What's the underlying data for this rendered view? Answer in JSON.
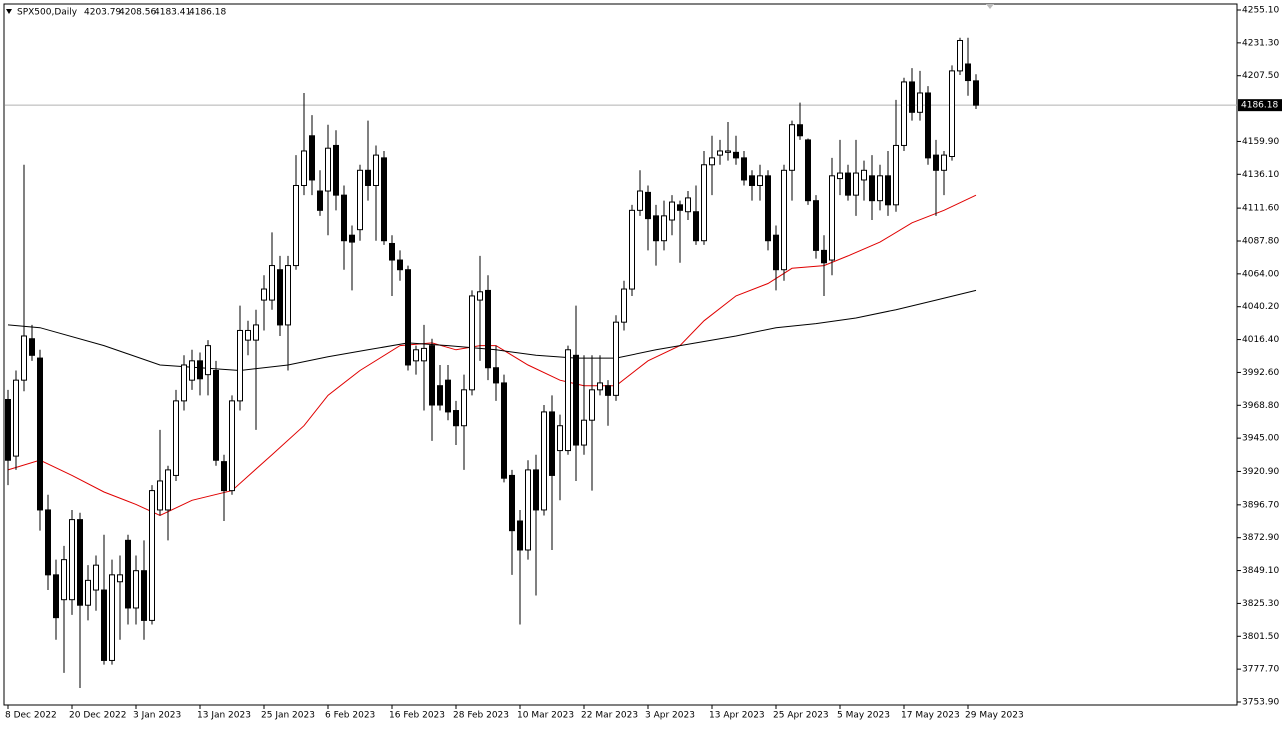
{
  "chart_data": {
    "type": "candlestick",
    "symbol": "SPX500,Daily",
    "categories": [
      "8 Dec 2022",
      null,
      null,
      null,
      null,
      null,
      null,
      null,
      "20 Dec 2022",
      null,
      null,
      null,
      null,
      null,
      null,
      null,
      "3 Jan 2023",
      null,
      null,
      null,
      null,
      null,
      null,
      null,
      "13 Jan 2023",
      null,
      null,
      null,
      null,
      null,
      null,
      null,
      "25 Jan 2023",
      null,
      null,
      null,
      null,
      null,
      null,
      null,
      "6 Feb 2023",
      null,
      null,
      null,
      null,
      null,
      null,
      null,
      "16 Feb 2023",
      null,
      null,
      null,
      null,
      null,
      null,
      null,
      "28 Feb 2023",
      null,
      null,
      null,
      null,
      null,
      null,
      null,
      "10 Mar 2023",
      null,
      null,
      null,
      null,
      null,
      null,
      null,
      "22 Mar 2023",
      null,
      null,
      null,
      null,
      null,
      null,
      null,
      "3 Apr 2023",
      null,
      null,
      null,
      null,
      null,
      null,
      null,
      "13 Apr 2023",
      null,
      null,
      null,
      null,
      null,
      null,
      null,
      "25 Apr 2023",
      null,
      null,
      null,
      null,
      null,
      null,
      null,
      "5 May 2023",
      null,
      null,
      null,
      null,
      null,
      null,
      null,
      "17 May 2023",
      null,
      null,
      null,
      null,
      null,
      null,
      null,
      "29 May 2023",
      null
    ],
    "open": [
      3973,
      3932,
      3987,
      4017,
      4003,
      3893,
      3846,
      3828,
      3828,
      3886,
      3824,
      3835,
      3835,
      3784,
      3841,
      3871,
      3822,
      3849,
      3813,
      3893,
      3893,
      3918,
      3972,
      3987,
      4001,
      3991,
      3994,
      3928,
      3907,
      3972,
      4016,
      4016,
      4045,
      4045,
      4067,
      4027,
      4070,
      4128,
      4164,
      4124,
      4124,
      4157,
      4121,
      4092,
      4096,
      4139,
      4128,
      4148,
      4086,
      4074,
      4067,
      4001,
      4001,
      4012,
      3983,
      3987,
      3965,
      3954,
      3980,
      4045,
      4052,
      3996,
      3985,
      3918,
      3885,
      3864,
      3922,
      3893,
      3964,
      3936,
      3936,
      4005,
      3940,
      3958,
      3980,
      3983,
      3976,
      4029,
      4053,
      4110,
      4123,
      4106,
      4088,
      4103,
      4114,
      4109,
      4109,
      4088,
      4143,
      4150,
      4152,
      4152,
      4148,
      4135,
      4128,
      4135,
      4092,
      4067,
      4139,
      4172,
      4161,
      4117,
      4081,
      4074,
      4133,
      4137,
      4121,
      4132,
      4135,
      4117,
      4135,
      4114,
      4157,
      4203,
      4181,
      4195,
      4150,
      4139,
      4149,
      4211,
      4216,
      4203.79
    ],
    "high": [
      3980,
      3994,
      4143,
      4027,
      4009,
      3904,
      3857,
      3867,
      3893,
      3891,
      3853,
      3860,
      3875,
      3857,
      3860,
      3875,
      3860,
      3871,
      3911,
      3951,
      3925,
      3980,
      4005,
      4009,
      4007,
      4016,
      4001,
      3933,
      3976,
      4041,
      4030,
      4038,
      4063,
      4094,
      4077,
      4077,
      4150,
      4195,
      4179,
      4139,
      4172,
      4168,
      4128,
      4099,
      4143,
      4175,
      4157,
      4153,
      4092,
      4081,
      4070,
      4012,
      4027,
      4017,
      3998,
      3998,
      3972,
      3991,
      4052,
      4077,
      4063,
      4012,
      3991,
      3922,
      3893,
      3929,
      3933,
      3969,
      3976,
      3962,
      4012,
      4041,
      4005,
      4005,
      4005,
      3987,
      4034,
      4059,
      4114,
      4139,
      4128,
      4114,
      4117,
      4121,
      4117,
      4124,
      4128,
      4153,
      4164,
      4161,
      4174,
      4164,
      4153,
      4139,
      4143,
      4139,
      4099,
      4143,
      4175,
      4188,
      4162,
      4121,
      4092,
      4148,
      4161,
      4143,
      4161,
      4146,
      4150,
      4143,
      4153,
      4190,
      4206,
      4213,
      4211,
      4200,
      4161,
      4153,
      4215,
      4235,
      4235,
      4208.56
    ],
    "low": [
      3911,
      3922,
      3979,
      4001,
      3878,
      3835,
      3799,
      3775,
      3817,
      3764,
      3813,
      3820,
      3781,
      3781,
      3799,
      3810,
      3810,
      3799,
      3810,
      3889,
      3871,
      3914,
      3965,
      3980,
      3976,
      3976,
      3925,
      3885,
      3904,
      3965,
      4005,
      3951,
      4023,
      4038,
      4019,
      3994,
      4067,
      4121,
      4121,
      4106,
      4092,
      4110,
      4067,
      4052,
      4088,
      4117,
      4088,
      4085,
      4048,
      4059,
      3994,
      3991,
      3965,
      3943,
      3965,
      3958,
      3940,
      3922,
      3976,
      4001,
      3987,
      3972,
      3913,
      3846,
      3810,
      3857,
      3831,
      3889,
      3864,
      3900,
      3933,
      3914,
      3933,
      3907,
      3976,
      3954,
      3972,
      4023,
      4048,
      4106,
      4081,
      4070,
      4081,
      4092,
      4072,
      4103,
      4085,
      4085,
      4121,
      4143,
      4146,
      4143,
      4128,
      4117,
      4117,
      4081,
      4052,
      4059,
      4117,
      4161,
      4114,
      4075,
      4048,
      4063,
      4121,
      4117,
      4106,
      4117,
      4103,
      4110,
      4106,
      4109,
      4153,
      4175,
      4175,
      4143,
      4106,
      4121,
      4146,
      4208,
      4193,
      4183.41
    ],
    "close": [
      3929,
      3987,
      4019,
      4005,
      3893,
      3846,
      3815,
      3857,
      3886,
      3824,
      3842,
      3853,
      3784,
      3846,
      3846,
      3822,
      3849,
      3813,
      3907,
      3914,
      3922,
      3972,
      3998,
      4001,
      3988,
      4012,
      3929,
      3907,
      3972,
      4023,
      4023,
      4027,
      4053,
      4070,
      4027,
      4070,
      4128,
      4153,
      4132,
      4110,
      4155,
      4121,
      4088,
      4087,
      4139,
      4128,
      4150,
      4088,
      4074,
      4067,
      3998,
      4009,
      4010,
      3969,
      3969,
      3964,
      3954,
      3980,
      4048,
      4051,
      3996,
      3985,
      3916,
      3878,
      3864,
      3922,
      3893,
      3964,
      3918,
      3954,
      4009,
      3940,
      3958,
      3980,
      3985,
      3976,
      4029,
      4053,
      4110,
      4124,
      4104,
      4088,
      4106,
      4116,
      4110,
      4119,
      4088,
      4143,
      4148,
      4153,
      4153,
      4148,
      4132,
      4128,
      4135,
      4088,
      4067,
      4139,
      4172,
      4164,
      4117,
      4081,
      4072,
      4135,
      4137,
      4121,
      4137,
      4139,
      4117,
      4135,
      4114,
      4157,
      4203,
      4181,
      4195,
      4148,
      4139,
      4150,
      4211,
      4233,
      4204,
      4186.18
    ],
    "series": [
      {
        "color": "#e00000",
        "x": [
          0,
          4,
          8,
          12,
          16,
          19,
          23,
          28,
          33,
          37,
          40,
          44,
          49,
          53,
          56,
          59,
          61,
          65,
          69,
          72,
          76,
          80,
          84,
          87,
          91,
          95,
          98,
          102,
          105,
          109,
          113,
          117,
          121
        ],
        "values": [
          3922,
          3929,
          3918,
          3906,
          3897,
          3889,
          3900,
          3907,
          3933,
          3954,
          3976,
          3994,
          4012,
          4014,
          4009,
          4012,
          4012,
          3998,
          3987,
          3983,
          3983,
          4001,
          4012,
          4030,
          4048,
          4057,
          4068,
          4070,
          4077,
          4087,
          4101,
          4110,
          4121
        ]
      },
      {
        "color": "#000000",
        "x": [
          0,
          4,
          12,
          19,
          24,
          29,
          35,
          40,
          45,
          50,
          55,
          61,
          66,
          71,
          76,
          81,
          86,
          91,
          96,
          101,
          106,
          111,
          116,
          121
        ],
        "values": [
          4027,
          4025,
          4012,
          3998,
          3996,
          3994,
          3998,
          4004,
          4009,
          4014,
          4012,
          4009,
          4005,
          4003,
          4003,
          4009,
          4014,
          4019,
          4025,
          4028,
          4032,
          4038,
          4045,
          4052
        ]
      }
    ],
    "ylim": [
      3753.9,
      4255.1
    ],
    "yticks": [
      {
        "value": 4255.1,
        "label": "4255.10"
      },
      {
        "value": 4231.3,
        "label": "4231.30"
      },
      {
        "value": 4207.5,
        "label": "4207.50"
      },
      {
        "value": 4159.9,
        "label": "4159.90"
      },
      {
        "value": 4136.1,
        "label": "4136.10"
      },
      {
        "value": 4111.6,
        "label": "4111.60"
      },
      {
        "value": 4087.8,
        "label": "4087.80"
      },
      {
        "value": 4064,
        "label": "4064.00"
      },
      {
        "value": 4040.2,
        "label": "4040.20"
      },
      {
        "value": 4016.4,
        "label": "4016.40"
      },
      {
        "value": 3992.6,
        "label": "3992.60"
      },
      {
        "value": 3968.8,
        "label": "3968.80"
      },
      {
        "value": 3945,
        "label": "3945.00"
      },
      {
        "value": 3920.9,
        "label": "3920.90"
      },
      {
        "value": 3896.7,
        "label": "3896.70"
      },
      {
        "value": 3872.9,
        "label": "3872.90"
      },
      {
        "value": 3849.1,
        "label": "3849.10"
      },
      {
        "value": 3825.3,
        "label": "3825.30"
      },
      {
        "value": 3801.5,
        "label": "3801.50"
      },
      {
        "value": 3777.7,
        "label": "3777.70"
      },
      {
        "value": 3753.9,
        "label": "3753.90"
      }
    ],
    "bull_color": "#ffffff",
    "bear_color": "#000000"
  }
}
